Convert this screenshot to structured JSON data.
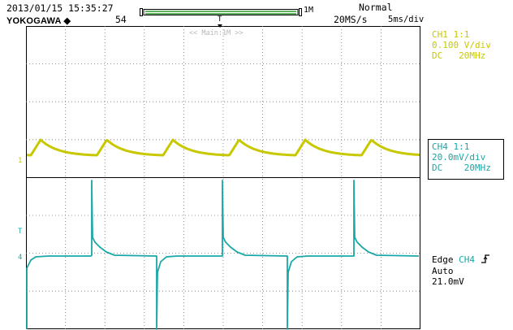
{
  "header": {
    "datetime": "2013/01/15 15:35:27",
    "brand": "YOKOGAWA",
    "acq_count": "54",
    "record_length": "1M",
    "mode": "Normal",
    "sample_rate": "20MS/s",
    "timebase": "5ms/div"
  },
  "screen": {
    "zoom_label": "<< Main:1M >>",
    "trigger_pos_marker": "T",
    "ch1_marker": "1",
    "ch4_marker": "4",
    "trigger_level_marker": "T"
  },
  "channels": [
    {
      "name": "CH1 1:1",
      "scale": "0.100 V/div",
      "coupling": "DC",
      "bandwidth": "20MHz",
      "color": "#c8c800"
    },
    {
      "name": "CH4 1:1",
      "scale": "20.0mV/div",
      "coupling": "DC",
      "bandwidth": "20MHz",
      "color": "#1aa7a7"
    }
  ],
  "trigger": {
    "type": "Edge",
    "source": "CH4",
    "slope_icon": "rising-edge-icon",
    "mode": "Auto",
    "level": "21.0mV"
  }
}
